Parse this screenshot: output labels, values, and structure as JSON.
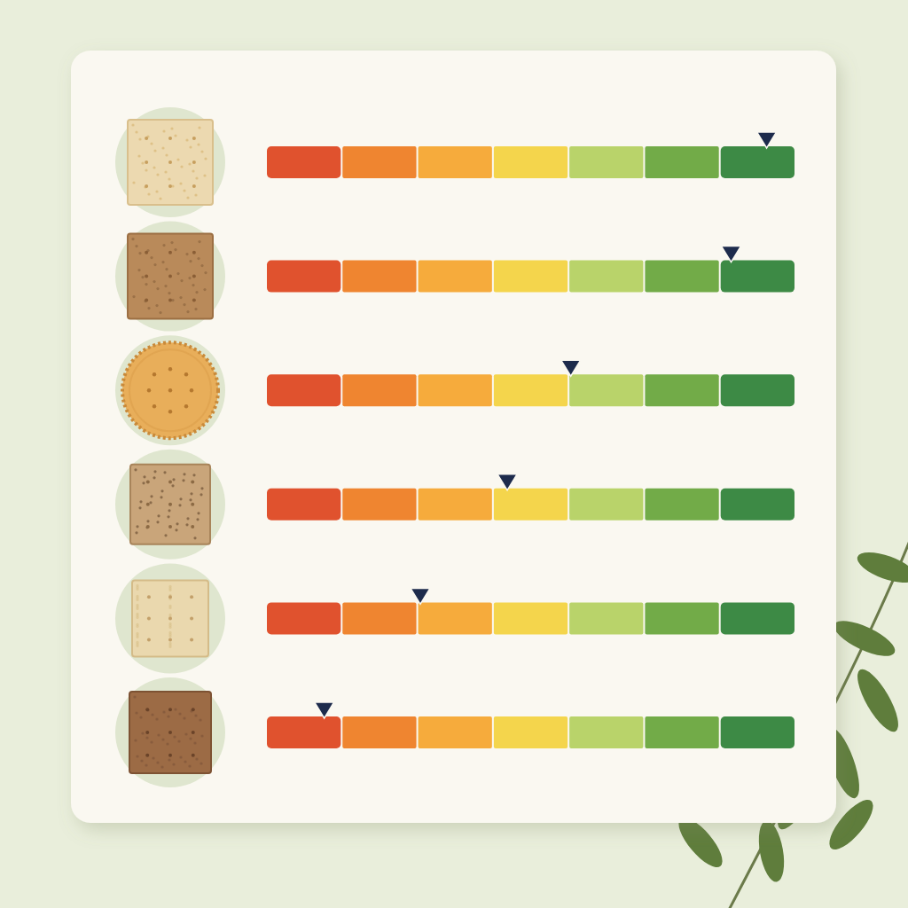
{
  "chart_data": {
    "type": "rating_scale",
    "categories": [
      null,
      null,
      null,
      null,
      null,
      null
    ],
    "values": [
      6.62,
      6.15,
      4.03,
      3.19,
      2.04,
      0.77
    ],
    "xlim": [
      0,
      7
    ],
    "xticks": [
      0,
      1,
      2,
      3,
      4,
      5,
      6,
      7
    ],
    "tick_labels": false,
    "color": "#1d2b4c"
  }
}
